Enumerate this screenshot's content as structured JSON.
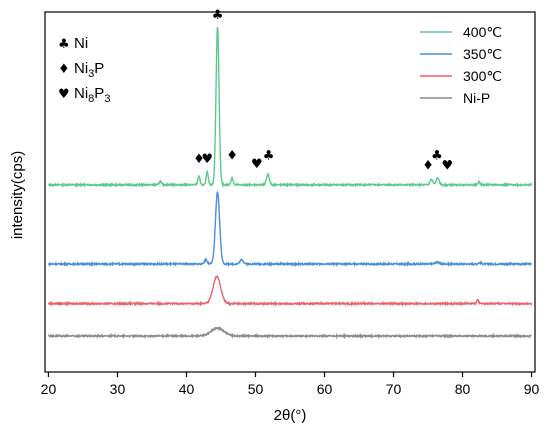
{
  "chart_data": {
    "type": "line",
    "xlabel": "2θ(°)",
    "ylabel": "intensity(cps)",
    "xlim": [
      19.5,
      90.5
    ],
    "xticks": [
      20,
      30,
      40,
      50,
      60,
      70,
      80,
      90
    ],
    "y_tick_labels": "none",
    "legend": {
      "placement": "top-right",
      "entries": [
        {
          "name": "400℃",
          "color": "#5cc98a"
        },
        {
          "name": "350℃",
          "color": "#4a8fd8"
        },
        {
          "name": "300℃",
          "color": "#e8646a"
        },
        {
          "name": "Ni-P",
          "color": "#8c8c8c"
        }
      ]
    },
    "phase_legend": [
      {
        "symbol": "♣",
        "name": "Ni"
      },
      {
        "symbol": "♦",
        "name": "Ni",
        "sub": "3",
        "tail": "P"
      },
      {
        "symbol": "♥",
        "name": "Ni",
        "sub": "8",
        "tail": "P",
        "sub2": "3"
      }
    ],
    "series": [
      {
        "name": "400℃",
        "color": "#5cc98a",
        "baseline": 0.52,
        "peaks": [
          {
            "x": 36.2,
            "h": 0.01,
            "w": 0.15
          },
          {
            "x": 41.8,
            "h": 0.025,
            "w": 0.15
          },
          {
            "x": 43.0,
            "h": 0.035,
            "w": 0.15
          },
          {
            "x": 44.5,
            "h": 0.44,
            "w": 0.22
          },
          {
            "x": 46.6,
            "h": 0.02,
            "w": 0.15
          },
          {
            "x": 51.8,
            "h": 0.03,
            "w": 0.2
          },
          {
            "x": 75.5,
            "h": 0.015,
            "w": 0.2
          },
          {
            "x": 76.4,
            "h": 0.02,
            "w": 0.2
          },
          {
            "x": 82.4,
            "h": 0.008,
            "w": 0.15
          }
        ]
      },
      {
        "name": "350℃",
        "color": "#4a8fd8",
        "baseline": 0.3,
        "peaks": [
          {
            "x": 42.8,
            "h": 0.012,
            "w": 0.2
          },
          {
            "x": 44.5,
            "h": 0.2,
            "w": 0.3
          },
          {
            "x": 48.0,
            "h": 0.012,
            "w": 0.25
          },
          {
            "x": 76.3,
            "h": 0.005,
            "w": 0.3
          },
          {
            "x": 82.5,
            "h": 0.004,
            "w": 0.2
          }
        ]
      },
      {
        "name": "300℃",
        "color": "#e8646a",
        "baseline": 0.19,
        "peaks": [
          {
            "x": 44.4,
            "h": 0.075,
            "w": 0.55
          },
          {
            "x": 82.2,
            "h": 0.012,
            "w": 0.12
          }
        ]
      },
      {
        "name": "Ni-P",
        "color": "#8c8c8c",
        "baseline": 0.1,
        "peaks": [
          {
            "x": 44.5,
            "h": 0.022,
            "w": 0.9
          }
        ]
      }
    ],
    "peak_markers": [
      {
        "symbol": "♣",
        "x": 44.5,
        "y": 0.98
      },
      {
        "symbol": "♦",
        "x": 41.8,
        "y": 0.58
      },
      {
        "symbol": "♥",
        "x": 43.0,
        "y": 0.58
      },
      {
        "symbol": "♦",
        "x": 46.6,
        "y": 0.59
      },
      {
        "symbol": "♥",
        "x": 50.2,
        "y": 0.567
      },
      {
        "symbol": "♣",
        "x": 51.9,
        "y": 0.59
      },
      {
        "symbol": "♦",
        "x": 75.0,
        "y": 0.563
      },
      {
        "symbol": "♣",
        "x": 76.3,
        "y": 0.59
      },
      {
        "symbol": "♥",
        "x": 77.8,
        "y": 0.563
      }
    ]
  }
}
